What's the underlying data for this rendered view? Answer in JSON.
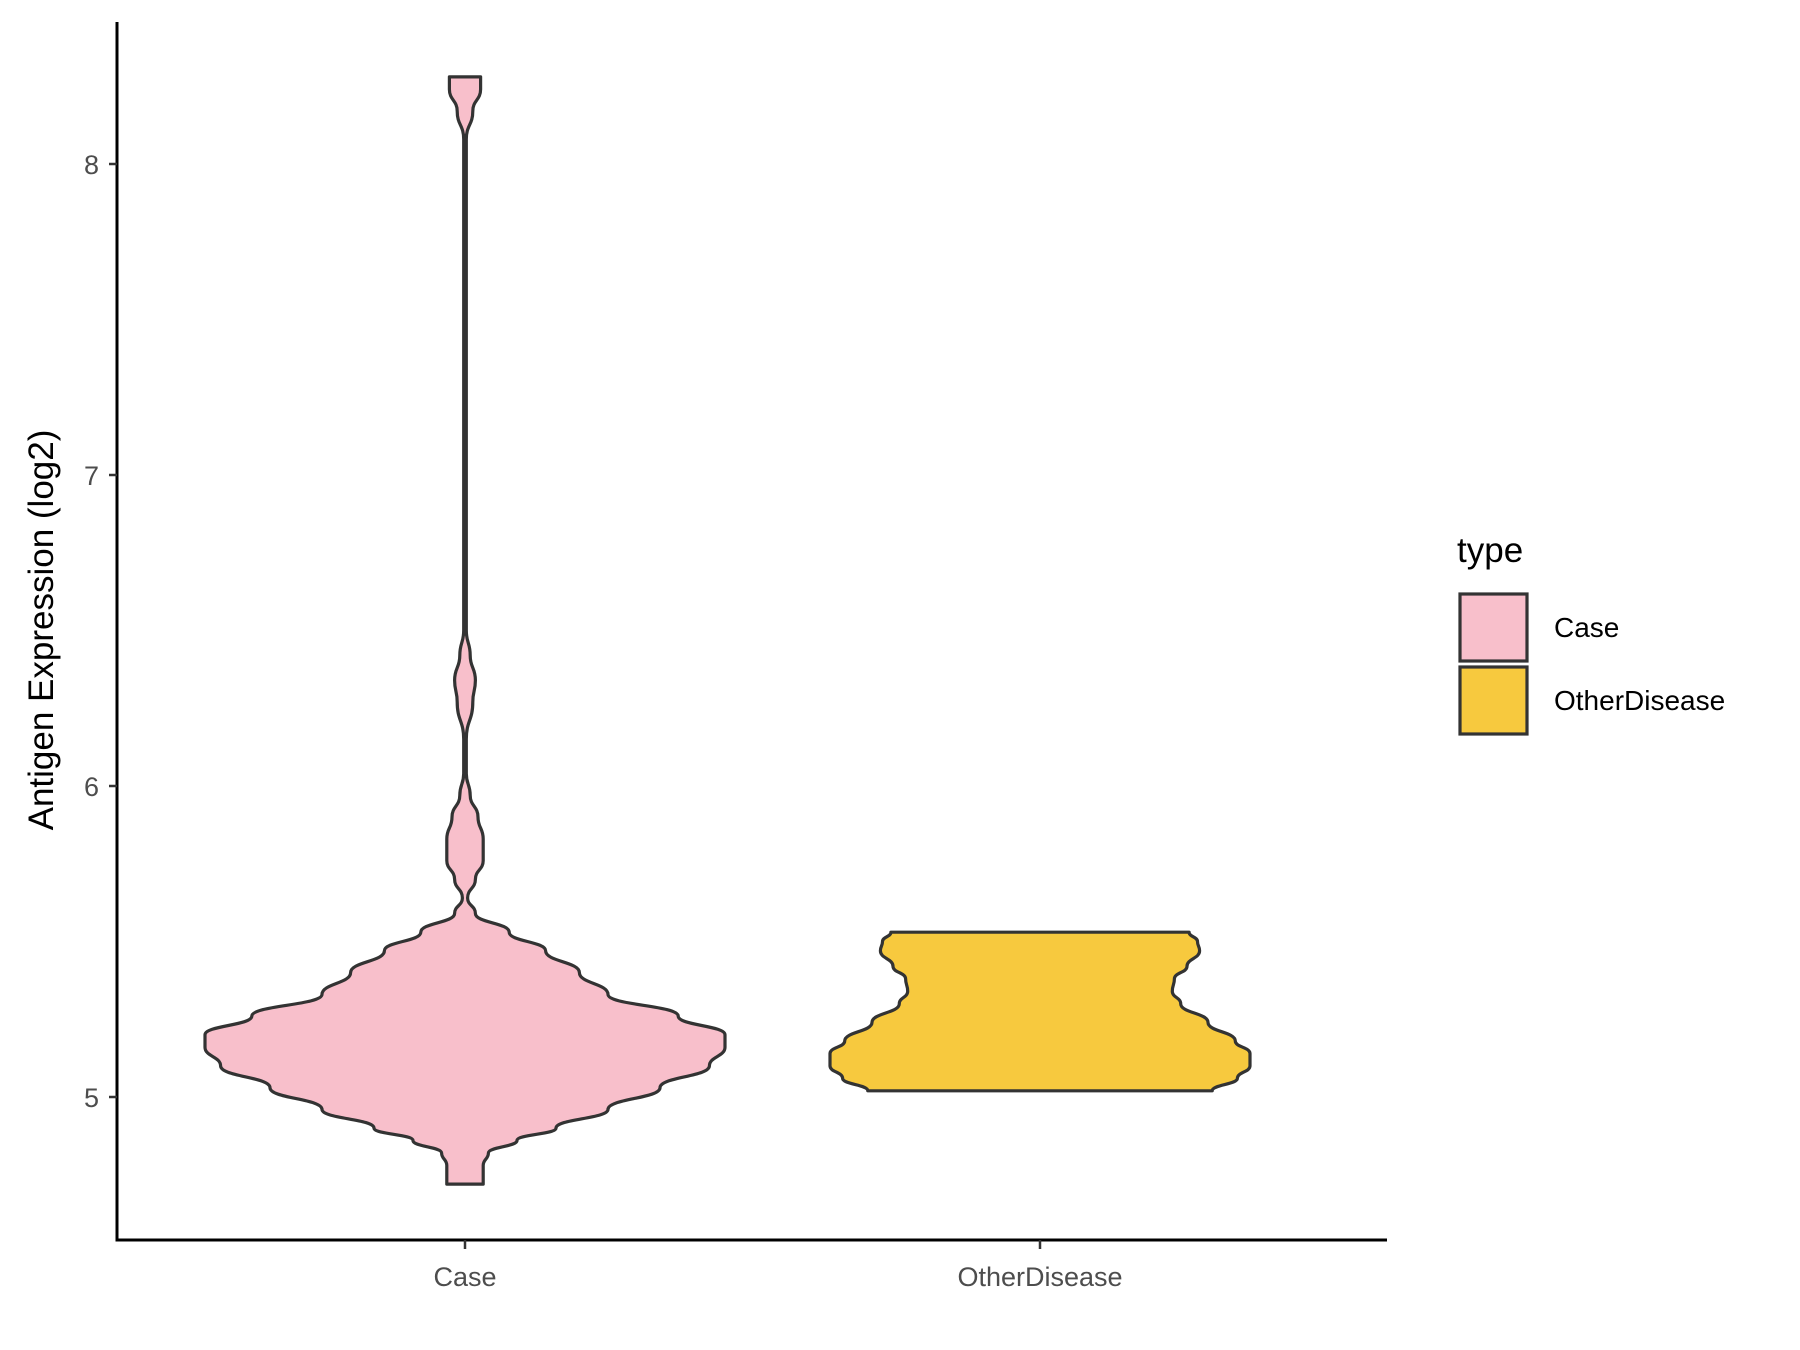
{
  "chart_data": {
    "type": "violin",
    "title": "",
    "xlabel": "",
    "ylabel": "Antigen Expression (log2)",
    "categories": [
      "Case",
      "OtherDisease"
    ],
    "ylim": [
      4.55,
      8.45
    ],
    "yticks": [
      5,
      6,
      7,
      8
    ],
    "grid": false,
    "legend": {
      "title": "type",
      "position": "right",
      "entries": [
        {
          "label": "Case",
          "color": "#f8bfcb"
        },
        {
          "label": "OtherDisease",
          "color": "#f7c93e"
        }
      ]
    },
    "series": [
      {
        "category": "Case",
        "color": "#f8bfcb",
        "y_min": 4.72,
        "y_max": 8.28,
        "density_profile": [
          [
            4.72,
            0.07
          ],
          [
            4.78,
            0.07
          ],
          [
            4.82,
            0.09
          ],
          [
            4.86,
            0.2
          ],
          [
            4.9,
            0.35
          ],
          [
            4.96,
            0.55
          ],
          [
            5.03,
            0.75
          ],
          [
            5.1,
            0.94
          ],
          [
            5.16,
            1.0
          ],
          [
            5.2,
            1.0
          ],
          [
            5.26,
            0.82
          ],
          [
            5.33,
            0.55
          ],
          [
            5.4,
            0.44
          ],
          [
            5.47,
            0.31
          ],
          [
            5.53,
            0.17
          ],
          [
            5.59,
            0.04
          ],
          [
            5.64,
            0.01
          ],
          [
            5.7,
            0.04
          ],
          [
            5.76,
            0.07
          ],
          [
            5.83,
            0.07
          ],
          [
            5.9,
            0.05
          ],
          [
            5.97,
            0.02
          ],
          [
            6.04,
            0.005
          ],
          [
            6.15,
            0.005
          ],
          [
            6.27,
            0.03
          ],
          [
            6.34,
            0.04
          ],
          [
            6.42,
            0.02
          ],
          [
            6.5,
            0.005
          ],
          [
            8.08,
            0.005
          ],
          [
            8.17,
            0.03
          ],
          [
            8.24,
            0.06
          ],
          [
            8.28,
            0.06
          ]
        ]
      },
      {
        "category": "OtherDisease",
        "color": "#f7c93e",
        "y_min": 5.02,
        "y_max": 5.53,
        "density_profile": [
          [
            5.02,
            0.82
          ],
          [
            5.06,
            0.94
          ],
          [
            5.1,
            1.0
          ],
          [
            5.14,
            1.0
          ],
          [
            5.18,
            0.93
          ],
          [
            5.24,
            0.8
          ],
          [
            5.3,
            0.67
          ],
          [
            5.34,
            0.63
          ],
          [
            5.38,
            0.64
          ],
          [
            5.42,
            0.7
          ],
          [
            5.47,
            0.76
          ],
          [
            5.5,
            0.75
          ],
          [
            5.53,
            0.71
          ]
        ]
      }
    ]
  }
}
